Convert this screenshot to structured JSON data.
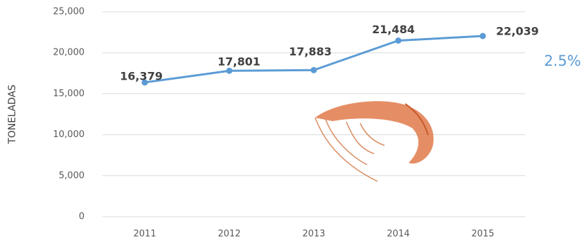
{
  "chart_data": {
    "type": "line",
    "y_label": "TONELADAS",
    "annotation": "2.5%",
    "categories": [
      "2011",
      "2012",
      "2013",
      "2014",
      "2015"
    ],
    "series": [
      {
        "color": "#5b9bd5",
        "values": [
          16379,
          17801,
          17883,
          21484,
          22039
        ],
        "value_labels": [
          "16,379",
          "17,801",
          "17,883",
          "21,484",
          "22,039"
        ]
      }
    ],
    "ylim": [
      0,
      25000
    ],
    "yticks": [
      0,
      {
        "value": 5000,
        "label": "5,000"
      },
      {
        "value": 10000,
        "label": "10,000"
      },
      {
        "value": 15000,
        "label": "15,000"
      },
      {
        "value": 20000,
        "label": "20,000"
      },
      {
        "value": 25000,
        "label": "25,000"
      }
    ],
    "grid": true
  }
}
